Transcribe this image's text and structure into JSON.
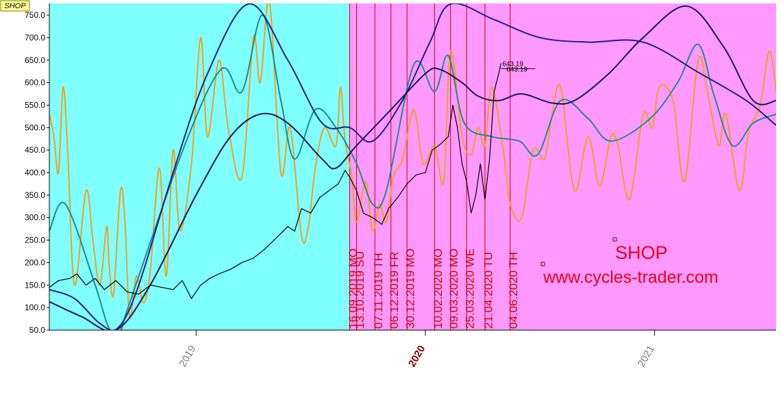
{
  "chart_data": {
    "type": "line",
    "title": "SHOP",
    "xlim": [
      2018.36,
      2021.53
    ],
    "ylim": [
      50,
      776
    ],
    "xticks": [
      2019,
      2020,
      2021
    ],
    "xtick_colors": [
      "#808080",
      "#800000",
      "#808080"
    ],
    "yticks": [
      {
        "value": 50,
        "label": "50.0"
      },
      {
        "value": 100,
        "label": "100.0"
      },
      {
        "value": 150,
        "label": "150.0"
      },
      {
        "value": 200,
        "label": "200.0"
      },
      {
        "value": 250,
        "label": "250.0"
      },
      {
        "value": 300,
        "label": "300.0"
      },
      {
        "value": 350,
        "label": "350.0"
      },
      {
        "value": 400,
        "label": "400.0"
      },
      {
        "value": 450,
        "label": "450.0"
      },
      {
        "value": 500,
        "label": "500.0"
      },
      {
        "value": 550,
        "label": "550.0"
      },
      {
        "value": 600,
        "label": "600.0"
      },
      {
        "value": 650,
        "label": "650.0"
      },
      {
        "value": 700,
        "label": "700.0"
      },
      {
        "value": 750,
        "label": "750.0"
      }
    ],
    "background_colors": [
      "#80ffff",
      "#ff99ff"
    ],
    "background_split": 2019.67,
    "vlines_color": "#cc0000",
    "vlines": [
      {
        "x": 2019.67,
        "label": "16.09.2019 MO"
      },
      {
        "x": 2019.7,
        "label": "13.10.2019 SU"
      },
      {
        "x": 2019.78,
        "label": "07.11.2019 TH"
      },
      {
        "x": 2019.85,
        "label": "06.12.2019 FR"
      },
      {
        "x": 2019.92,
        "label": "30.12.2019 MO"
      },
      {
        "x": 2020.04,
        "label": "10.02.2020 MO"
      },
      {
        "x": 2020.11,
        "label": "09.03.2020 MO"
      },
      {
        "x": 2020.18,
        "label": "25.03.2020 WE"
      },
      {
        "x": 2020.26,
        "label": "21.04.2020 TU"
      },
      {
        "x": 2020.37,
        "label": "04.06.2020 TH"
      }
    ],
    "price_labels": [
      "643.19",
      "643.19"
    ],
    "annotation": "SHOP",
    "website": "www.cycles-trader.com",
    "series": [
      {
        "color": "#f0a020",
        "smooth": true,
        "x": [
          2018.36,
          2018.38,
          2018.4,
          2018.42,
          2018.44,
          2018.47,
          2018.52,
          2018.55,
          2018.58,
          2018.61,
          2018.62,
          2018.64,
          2018.67,
          2018.69,
          2018.71,
          2018.74,
          2018.77,
          2018.8,
          2018.84,
          2018.87,
          2018.9,
          2018.93,
          2018.98,
          2019.02,
          2019.05,
          2019.1,
          2019.14,
          2019.2,
          2019.25,
          2019.28,
          2019.32,
          2019.37,
          2019.41,
          2019.46,
          2019.49,
          2019.52,
          2019.56,
          2019.61,
          2019.63,
          2019.65,
          2019.68,
          2019.7,
          2019.74,
          2019.77,
          2019.8,
          2019.83,
          2019.86,
          2019.9,
          2019.95,
          2019.99,
          2020.04,
          2020.08,
          2020.11,
          2020.16,
          2020.2,
          2020.23,
          2020.26,
          2020.29,
          2020.34,
          2020.37,
          2020.42,
          2020.47,
          2020.52,
          2020.55,
          2020.59,
          2020.65,
          2020.71,
          2020.76,
          2020.81,
          2020.84,
          2020.89,
          2020.95,
          2020.99,
          2021.02,
          2021.08,
          2021.13,
          2021.19,
          2021.23,
          2021.28,
          2021.31,
          2021.37,
          2021.41,
          2021.46,
          2021.5,
          2021.53
        ],
        "values": [
          530,
          480,
          400,
          590,
          450,
          150,
          360,
          250,
          150,
          280,
          200,
          130,
          360,
          290,
          80,
          170,
          110,
          180,
          410,
          170,
          450,
          270,
          420,
          700,
          480,
          650,
          500,
          390,
          700,
          600,
          780,
          400,
          500,
          260,
          280,
          410,
          500,
          460,
          590,
          470,
          390,
          290,
          380,
          270,
          330,
          290,
          390,
          430,
          540,
          420,
          460,
          380,
          670,
          480,
          440,
          500,
          460,
          590,
          450,
          330,
          300,
          450,
          430,
          520,
          590,
          360,
          480,
          370,
          480,
          460,
          340,
          530,
          500,
          590,
          560,
          380,
          650,
          580,
          460,
          530,
          360,
          490,
          550,
          670,
          580
        ]
      },
      {
        "color": "#1f8a8a",
        "smooth": true,
        "x": [
          2018.36,
          2018.43,
          2018.56,
          2018.62,
          2018.67,
          2018.71,
          2018.95,
          2019.11,
          2019.2,
          2019.29,
          2019.37,
          2019.43,
          2019.52,
          2019.61,
          2019.7,
          2019.77,
          2019.83,
          2019.95,
          2020.04,
          2020.1,
          2020.17,
          2020.29,
          2020.41,
          2020.49,
          2020.59,
          2020.71,
          2020.81,
          2020.98,
          2021.1,
          2021.19,
          2021.26,
          2021.34,
          2021.43,
          2021.53
        ],
        "values": [
          270,
          330,
          150,
          55,
          50,
          110,
          460,
          630,
          580,
          750,
          560,
          430,
          540,
          500,
          420,
          330,
          360,
          640,
          580,
          660,
          510,
          480,
          470,
          440,
          560,
          520,
          470,
          520,
          600,
          685,
          570,
          460,
          510,
          530
        ]
      },
      {
        "color": "#1c1c90",
        "smooth": true,
        "x": [
          2018.36,
          2018.47,
          2018.58,
          2018.66,
          2018.75,
          2018.9,
          2019.05,
          2019.23,
          2019.4,
          2019.55,
          2019.67,
          2019.77,
          2019.9,
          2020.02,
          2020.11,
          2020.3,
          2020.5,
          2020.71,
          2020.95,
          2021.2,
          2021.4,
          2021.53
        ],
        "values": [
          140,
          120,
          65,
          55,
          150,
          400,
          620,
          775,
          650,
          510,
          500,
          470,
          560,
          690,
          775,
          740,
          700,
          690,
          690,
          620,
          560,
          505
        ]
      },
      {
        "color": "#141460",
        "smooth": true,
        "x": [
          2018.36,
          2018.5,
          2018.65,
          2018.8,
          2019.0,
          2019.15,
          2019.28,
          2019.4,
          2019.55,
          2019.61,
          2019.7,
          2019.85,
          2020.0,
          2020.06,
          2020.16,
          2020.23,
          2020.32,
          2020.42,
          2020.55,
          2020.65,
          2020.8,
          2020.95,
          2021.14,
          2021.3,
          2021.43,
          2021.53
        ],
        "values": [
          113,
          80,
          50,
          150,
          350,
          480,
          530,
          510,
          430,
          410,
          460,
          540,
          620,
          630,
          600,
          570,
          560,
          575,
          555,
          560,
          620,
          700,
          770,
          680,
          560,
          560
        ]
      },
      {
        "color": "#000000",
        "smooth": false,
        "x": [
          2018.36,
          2018.4,
          2018.45,
          2018.48,
          2018.52,
          2018.56,
          2018.6,
          2018.65,
          2018.7,
          2018.75,
          2018.8,
          2018.85,
          2018.9,
          2018.94,
          2018.98,
          2019.02,
          2019.06,
          2019.1,
          2019.15,
          2019.2,
          2019.25,
          2019.3,
          2019.35,
          2019.4,
          2019.43,
          2019.46,
          2019.5,
          2019.54,
          2019.58,
          2019.62,
          2019.65,
          2019.67,
          2019.7,
          2019.73,
          2019.77,
          2019.81,
          2019.84,
          2019.88,
          2019.92,
          2019.96,
          2020.0,
          2020.03,
          2020.07,
          2020.1,
          2020.12,
          2020.14,
          2020.16,
          2020.18,
          2020.2,
          2020.22,
          2020.24,
          2020.26,
          2020.28,
          2020.3,
          2020.32,
          2020.33
        ],
        "values": [
          145,
          160,
          165,
          175,
          150,
          165,
          140,
          160,
          135,
          130,
          150,
          145,
          140,
          160,
          120,
          150,
          165,
          175,
          185,
          200,
          210,
          230,
          255,
          280,
          270,
          320,
          310,
          345,
          360,
          375,
          405,
          390,
          360,
          310,
          300,
          285,
          320,
          345,
          375,
          395,
          400,
          450,
          465,
          480,
          550,
          500,
          420,
          380,
          310,
          350,
          420,
          340,
          430,
          580,
          620,
          643.19
        ]
      }
    ]
  }
}
